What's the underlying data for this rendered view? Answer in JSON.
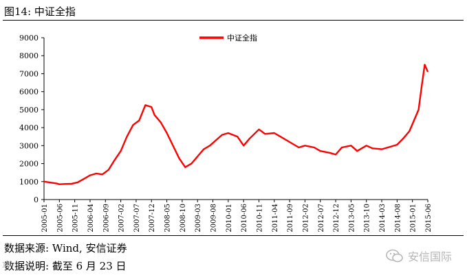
{
  "figure": {
    "title": "图14: 中证全指",
    "source_note": "数据来源: Wind, 安信证券",
    "desc_note": "数据说明: 截至 6 月 23 日",
    "watermark": "安信国际",
    "watermark_icon": "wechat-icon",
    "watermark_left": "19"
  },
  "colors": {
    "series": "#ff0000",
    "axis": "#000000"
  },
  "chart_data": {
    "type": "line",
    "title": "",
    "xlabel": "",
    "ylabel": "",
    "ylim": [
      0,
      9000
    ],
    "yticks": [
      0,
      1000,
      2000,
      3000,
      4000,
      5000,
      6000,
      7000,
      8000,
      9000
    ],
    "xticks": [
      "2005-01",
      "2005-06",
      "2005-11",
      "2006-04",
      "2006-09",
      "2007-02",
      "2007-07",
      "2007-12",
      "2008-05",
      "2008-10",
      "2009-03",
      "2009-08",
      "2010-01",
      "2010-06",
      "2010-11",
      "2011-04",
      "2011-09",
      "2012-02",
      "2012-07",
      "2012-12",
      "2013-05",
      "2013-10",
      "2014-03",
      "2014-08",
      "2015-01",
      "2015-06"
    ],
    "grid": false,
    "legend_position": "top-center",
    "series": [
      {
        "name": "中证全指",
        "x": [
          "2005-01",
          "2005-03",
          "2005-05",
          "2005-06",
          "2005-08",
          "2005-10",
          "2005-12",
          "2006-02",
          "2006-04",
          "2006-06",
          "2006-08",
          "2006-10",
          "2006-12",
          "2007-02",
          "2007-04",
          "2007-06",
          "2007-08",
          "2007-10",
          "2007-12",
          "2008-01",
          "2008-03",
          "2008-05",
          "2008-07",
          "2008-09",
          "2008-11",
          "2009-01",
          "2009-03",
          "2009-05",
          "2009-07",
          "2009-09",
          "2009-11",
          "2010-01",
          "2010-04",
          "2010-06",
          "2010-08",
          "2010-11",
          "2011-01",
          "2011-04",
          "2011-06",
          "2011-09",
          "2011-12",
          "2012-02",
          "2012-05",
          "2012-07",
          "2012-10",
          "2012-12",
          "2013-02",
          "2013-05",
          "2013-07",
          "2013-10",
          "2013-12",
          "2014-03",
          "2014-05",
          "2014-08",
          "2014-10",
          "2014-12",
          "2015-01",
          "2015-03",
          "2015-04",
          "2015-05",
          "2015-06"
        ],
        "values": [
          1000,
          950,
          900,
          850,
          870,
          880,
          960,
          1150,
          1350,
          1450,
          1400,
          1650,
          2200,
          2700,
          3500,
          4150,
          4400,
          5250,
          5150,
          4700,
          4300,
          3700,
          3000,
          2300,
          1800,
          2000,
          2400,
          2800,
          3000,
          3300,
          3600,
          3700,
          3500,
          3000,
          3400,
          3900,
          3650,
          3700,
          3500,
          3200,
          2900,
          3000,
          2900,
          2700,
          2600,
          2500,
          2900,
          3000,
          2700,
          3000,
          2850,
          2800,
          2900,
          3050,
          3400,
          3800,
          4200,
          5000,
          6300,
          7500,
          7100
        ]
      }
    ]
  }
}
